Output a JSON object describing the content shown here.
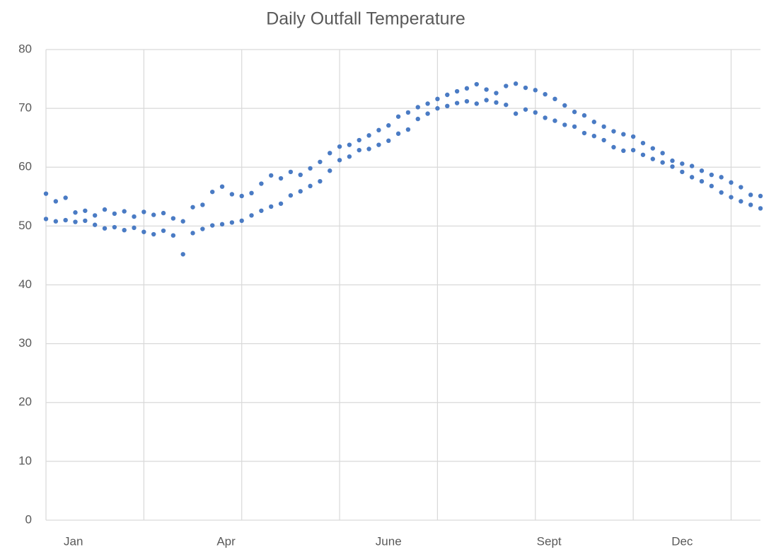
{
  "chart_data": {
    "type": "scatter",
    "title": "Daily Outfall Temperature",
    "color": "#4a7bc4",
    "grid": true,
    "xlim": [
      0,
      365
    ],
    "ylim": [
      0,
      80
    ],
    "yticks": [
      0,
      10,
      20,
      30,
      40,
      50,
      60,
      70,
      80
    ],
    "xgrid": [
      0,
      50,
      100,
      150,
      200,
      250,
      300,
      350
    ],
    "xticks": [
      {
        "value": 14,
        "label": "Jan"
      },
      {
        "value": 92,
        "label": "Apr"
      },
      {
        "value": 175,
        "label": "June"
      },
      {
        "value": 257,
        "label": "Sept"
      },
      {
        "value": 325,
        "label": "Dec"
      }
    ],
    "x": [
      0,
      5,
      10,
      15,
      20,
      25,
      30,
      35,
      40,
      45,
      50,
      55,
      60,
      65,
      70,
      75,
      80,
      85,
      90,
      95,
      100,
      105,
      110,
      115,
      120,
      125,
      130,
      135,
      140,
      145,
      150,
      155,
      160,
      165,
      170,
      175,
      180,
      185,
      190,
      195,
      200,
      205,
      210,
      215,
      220,
      225,
      230,
      235,
      240,
      245,
      250,
      255,
      260,
      265,
      270,
      275,
      280,
      285,
      290,
      295,
      300,
      305,
      310,
      315,
      320,
      325,
      330,
      335,
      340,
      345,
      350,
      355,
      360,
      365,
      0,
      5,
      10,
      15,
      20,
      25,
      30,
      35,
      40,
      45,
      50,
      55,
      60,
      65,
      70,
      75,
      80,
      85,
      90,
      95,
      100,
      105,
      110,
      115,
      120,
      125,
      130,
      135,
      140,
      145,
      150,
      155,
      160,
      165,
      170,
      175,
      180,
      185,
      190,
      195,
      200,
      205,
      210,
      215,
      220,
      225,
      230,
      235,
      240,
      245,
      250,
      255,
      260,
      265,
      270,
      275,
      280,
      285,
      290,
      295,
      300,
      305,
      310,
      315,
      320,
      325,
      330,
      335,
      340,
      345,
      350,
      355,
      360,
      365
    ],
    "values": [
      55.5,
      54.2,
      54.8,
      52.3,
      52.6,
      51.8,
      52.8,
      52.1,
      52.5,
      51.6,
      52.4,
      51.9,
      52.2,
      51.3,
      50.8,
      53.2,
      53.6,
      55.8,
      56.7,
      55.4,
      55.1,
      55.6,
      57.2,
      58.6,
      58.1,
      59.2,
      58.7,
      59.8,
      60.9,
      62.4,
      63.5,
      63.8,
      64.6,
      65.4,
      66.3,
      67.1,
      68.6,
      69.3,
      70.2,
      70.8,
      71.6,
      72.3,
      72.9,
      73.4,
      74.1,
      73.2,
      72.6,
      73.8,
      74.2,
      73.5,
      73.1,
      72.4,
      71.6,
      70.5,
      69.4,
      68.8,
      67.7,
      66.9,
      66.1,
      65.6,
      65.2,
      64.1,
      63.2,
      62.4,
      61.1,
      60.6,
      60.2,
      59.4,
      58.7,
      58.3,
      57.4,
      56.6,
      55.3,
      55.1,
      51.2,
      50.8,
      51.0,
      50.7,
      50.9,
      50.2,
      49.6,
      49.8,
      49.3,
      49.7,
      49.0,
      48.6,
      49.2,
      48.4,
      45.2,
      48.8,
      49.5,
      50.1,
      50.3,
      50.6,
      50.9,
      51.8,
      52.6,
      53.3,
      53.8,
      55.2,
      55.9,
      56.8,
      57.6,
      59.4,
      61.2,
      61.8,
      62.9,
      63.1,
      63.8,
      64.5,
      65.7,
      66.4,
      68.2,
      69.1,
      70.0,
      70.4,
      70.9,
      71.2,
      70.8,
      71.4,
      71.0,
      70.6,
      69.1,
      69.8,
      69.3,
      68.4,
      67.9,
      67.2,
      66.9,
      65.8,
      65.3,
      64.6,
      63.4,
      62.8,
      62.9,
      62.1,
      61.4,
      60.8,
      60.1,
      59.2,
      58.3,
      57.6,
      56.8,
      55.7,
      54.9,
      54.2,
      53.6,
      53.0
    ]
  }
}
